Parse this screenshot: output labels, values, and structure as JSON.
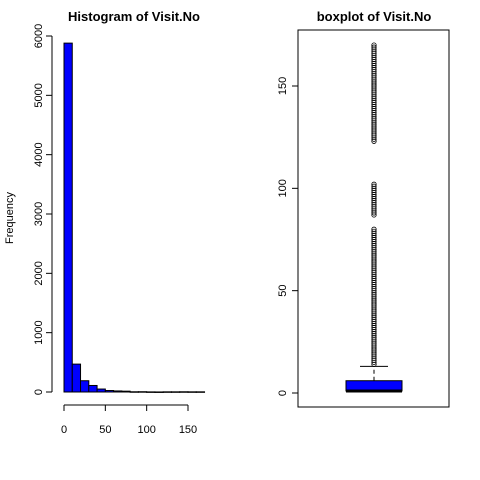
{
  "chart_data": [
    {
      "type": "bar",
      "title": "Histogram of Visit.No",
      "xlabel": "",
      "ylabel": "Frequency",
      "bar_color": "#0000ff",
      "bins": [
        {
          "start": 0,
          "end": 10,
          "value": 5880
        },
        {
          "start": 10,
          "end": 20,
          "value": 470
        },
        {
          "start": 20,
          "end": 30,
          "value": 190
        },
        {
          "start": 30,
          "end": 40,
          "value": 110
        },
        {
          "start": 40,
          "end": 50,
          "value": 50
        },
        {
          "start": 50,
          "end": 60,
          "value": 25
        },
        {
          "start": 60,
          "end": 70,
          "value": 18
        },
        {
          "start": 70,
          "end": 80,
          "value": 14
        },
        {
          "start": 80,
          "end": 90,
          "value": 4
        },
        {
          "start": 90,
          "end": 100,
          "value": 5
        },
        {
          "start": 100,
          "end": 110,
          "value": 2
        },
        {
          "start": 110,
          "end": 120,
          "value": 1
        },
        {
          "start": 120,
          "end": 130,
          "value": 3
        },
        {
          "start": 130,
          "end": 140,
          "value": 3
        },
        {
          "start": 140,
          "end": 150,
          "value": 4
        },
        {
          "start": 150,
          "end": 160,
          "value": 3
        },
        {
          "start": 160,
          "end": 170,
          "value": 3
        }
      ],
      "xticks": [
        0,
        50,
        100,
        150
      ],
      "xtick_labels": [
        "0",
        "50",
        "100",
        "150"
      ],
      "yticks": [
        0,
        1000,
        2000,
        3000,
        4000,
        5000,
        6000
      ],
      "ytick_labels": [
        "0",
        "1000",
        "2000",
        "3000",
        "4000",
        "5000",
        "6000"
      ],
      "xlim": [
        0,
        170
      ],
      "ylim": [
        0,
        6000
      ]
    },
    {
      "type": "boxplot",
      "title": "boxplot of Visit.No",
      "ylabel": "",
      "box_color": "#0000ff",
      "stats": {
        "min": 1,
        "q1": 1,
        "median": 1,
        "q3": 6,
        "whisker_high": 13
      },
      "outlier_ranges": [
        [
          14,
          80
        ],
        [
          87,
          102
        ],
        [
          123,
          170
        ]
      ],
      "yticks": [
        0,
        50,
        100,
        150
      ],
      "ytick_labels": [
        "0",
        "50",
        "100",
        "150"
      ],
      "ylim": [
        0,
        170
      ]
    }
  ]
}
